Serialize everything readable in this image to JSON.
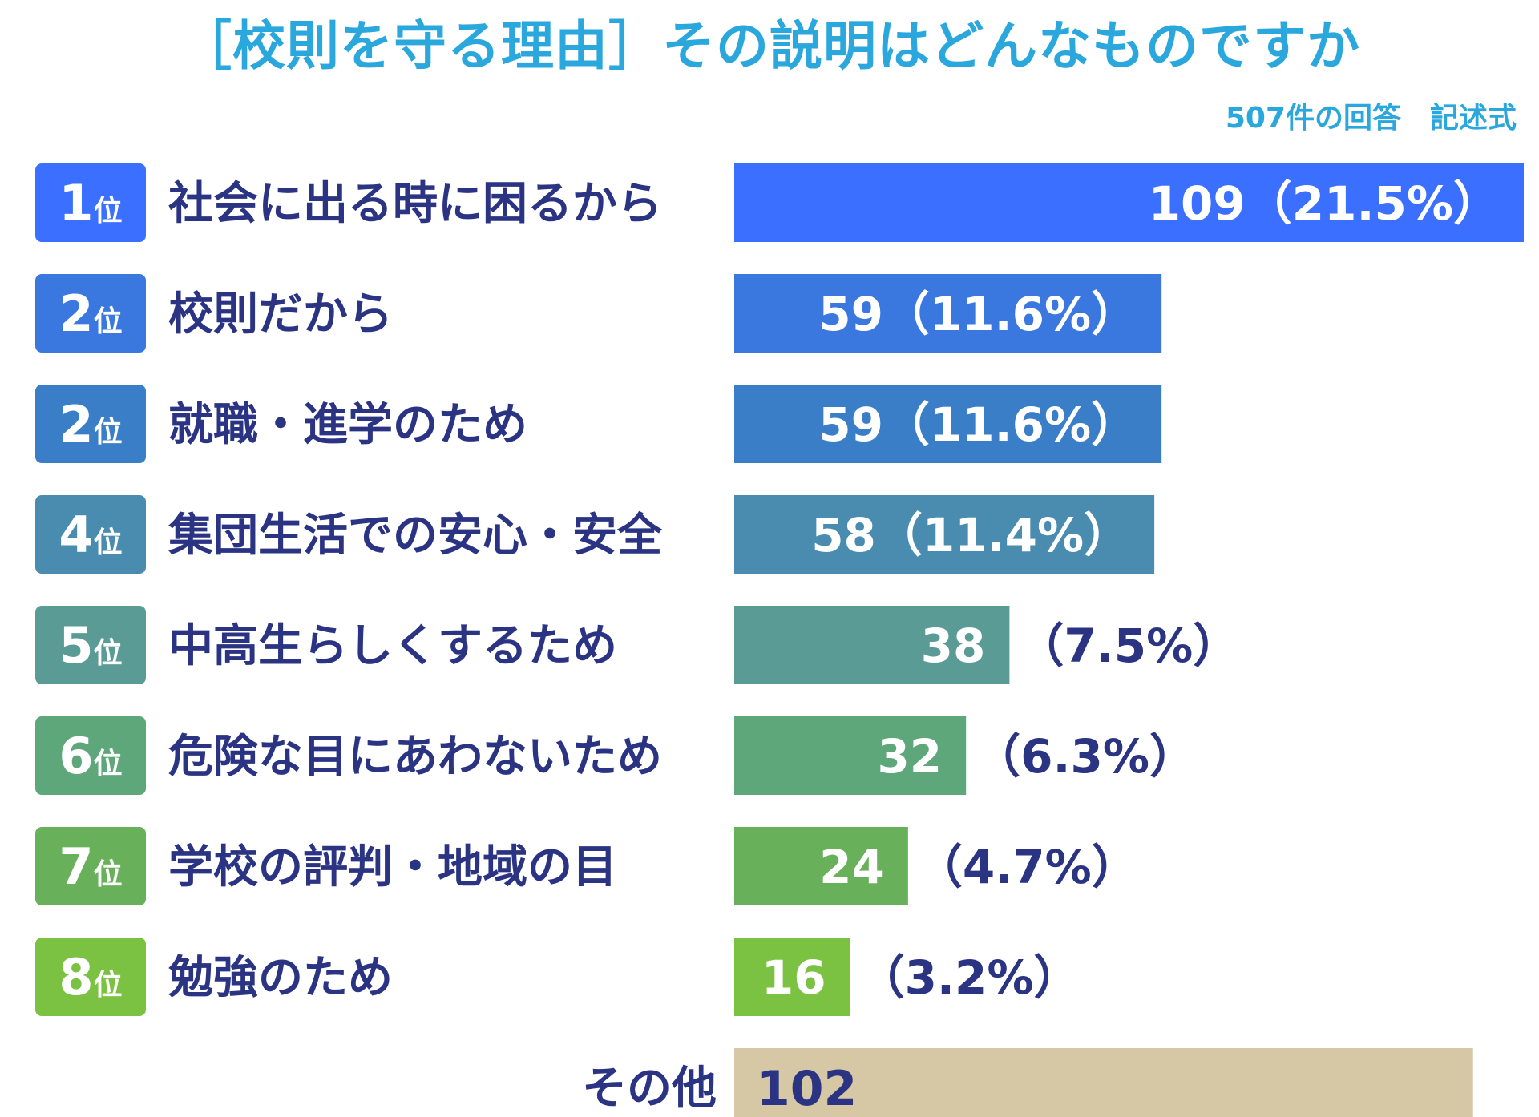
{
  "chart_data": {
    "type": "bar",
    "title": "［校則を守る理由］その説明はどんなものですか",
    "subtitle": "507件の回答　記述式",
    "rank_suffix": "位",
    "items": [
      {
        "rank": "1",
        "label": "社会に出る時に困るから",
        "value": 109,
        "value_text": "109（21.5%）",
        "color": "#3a6fff"
      },
      {
        "rank": "2",
        "label": "校則だから",
        "value": 59,
        "value_text": "59（11.6%）",
        "color": "#3a78e0"
      },
      {
        "rank": "2",
        "label": "就職・進学のため",
        "value": 59,
        "value_text": "59（11.6%）",
        "color": "#3a7ec8"
      },
      {
        "rank": "4",
        "label": "集団生活での安心・安全",
        "value": 58,
        "value_text": "58（11.4%）",
        "color": "#4a8bb0"
      },
      {
        "rank": "5",
        "label": "中高生らしくするため",
        "value": 38,
        "value_text": "38",
        "note": "（7.5%）",
        "color": "#5a9b96"
      },
      {
        "rank": "6",
        "label": "危険な目にあわないため",
        "value": 32,
        "value_text": "32",
        "note": "（6.3%）",
        "color": "#5ea77a"
      },
      {
        "rank": "7",
        "label": "学校の評判・地域の目",
        "value": 24,
        "value_text": "24",
        "note": "（4.7%）",
        "color": "#68b15a"
      },
      {
        "rank": "8",
        "label": "勉強のため",
        "value": 16,
        "value_text": "16",
        "note": "（3.2%）",
        "color": "#7cc242"
      }
    ],
    "other": {
      "label": "その他",
      "value": 102,
      "value_text": "102",
      "color": "#d6c8a5"
    },
    "text_color": "#2b3483",
    "title_color": "#2aa7dc"
  }
}
